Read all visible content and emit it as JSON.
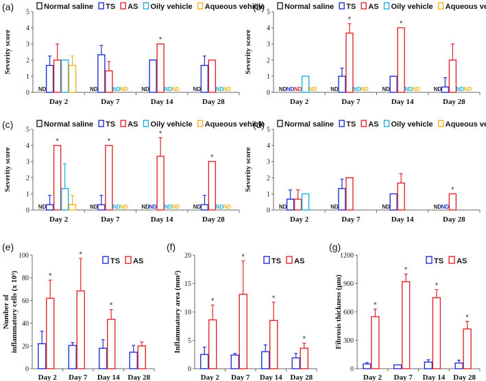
{
  "colors": {
    "normal_saline": "#222222",
    "ts": "#1f2fd0",
    "as": "#e0252a",
    "oily": "#1ab0d8",
    "aqueous": "#f2b21b"
  },
  "nd_label": "ND",
  "significance_marker": "*",
  "chart_data": [
    {
      "id": "a",
      "panel_label": "(a)",
      "type": "bar",
      "ylabel": "Severity score",
      "ylim": [
        0,
        5
      ],
      "yticks": [
        "0",
        "1",
        "2",
        "3",
        "4",
        "5"
      ],
      "categories": [
        "Day 2",
        "Day 7",
        "Day 14",
        "Day 28"
      ],
      "legend": [
        "Normal saline",
        "TS",
        "AS",
        "Oily vehicle",
        "Aqueous vehicle"
      ],
      "series": [
        {
          "name": "Normal saline",
          "color_key": "normal_saline",
          "values": [
            null,
            null,
            null,
            null
          ],
          "errors": [
            0,
            0,
            0,
            0
          ],
          "nd": [
            true,
            true,
            true,
            true
          ],
          "sig": [
            false,
            false,
            false,
            false
          ]
        },
        {
          "name": "TS",
          "color_key": "ts",
          "values": [
            1.67,
            2.33,
            2.0,
            1.67
          ],
          "errors": [
            0.58,
            0.58,
            0,
            0.58
          ],
          "nd": [
            false,
            false,
            false,
            false
          ],
          "sig": [
            false,
            false,
            false,
            false
          ]
        },
        {
          "name": "AS",
          "color_key": "as",
          "values": [
            2.0,
            1.33,
            3.0,
            2.0
          ],
          "errors": [
            1.0,
            0.58,
            0,
            0
          ],
          "nd": [
            false,
            false,
            false,
            false
          ],
          "sig": [
            false,
            false,
            true,
            false
          ]
        },
        {
          "name": "Oily vehicle",
          "color_key": "oily",
          "values": [
            2.0,
            null,
            null,
            null
          ],
          "errors": [
            0,
            0,
            0,
            0
          ],
          "nd": [
            false,
            true,
            true,
            true
          ],
          "sig": [
            false,
            false,
            false,
            false
          ]
        },
        {
          "name": "Aqueous vehicle",
          "color_key": "aqueous",
          "values": [
            1.67,
            null,
            null,
            null
          ],
          "errors": [
            0.58,
            0,
            0,
            0
          ],
          "nd": [
            false,
            true,
            true,
            true
          ],
          "sig": [
            false,
            false,
            false,
            false
          ]
        }
      ]
    },
    {
      "id": "b",
      "panel_label": "(b)",
      "type": "bar",
      "ylabel": "Severity score",
      "ylim": [
        0,
        5
      ],
      "yticks": [
        "0",
        "1",
        "2",
        "3",
        "4",
        "5"
      ],
      "categories": [
        "Day 2",
        "Day 7",
        "Day 14",
        "Day 28"
      ],
      "legend": [
        "Normal saline",
        "TS",
        "AS",
        "Oily vehicle",
        "Aqueous vehicle"
      ],
      "series": [
        {
          "name": "Normal saline",
          "color_key": "normal_saline",
          "values": [
            null,
            null,
            null,
            null
          ],
          "errors": [
            0,
            0,
            0,
            0
          ],
          "nd": [
            true,
            true,
            true,
            true
          ],
          "sig": [
            false,
            false,
            false,
            false
          ]
        },
        {
          "name": "TS",
          "color_key": "ts",
          "values": [
            null,
            1.0,
            1.0,
            0.33
          ],
          "errors": [
            0,
            0.5,
            0,
            0.58
          ],
          "nd": [
            true,
            false,
            false,
            false
          ],
          "sig": [
            false,
            false,
            false,
            false
          ]
        },
        {
          "name": "AS",
          "color_key": "as",
          "values": [
            null,
            3.67,
            4.0,
            2.0
          ],
          "errors": [
            0,
            0.58,
            0,
            1.0
          ],
          "nd": [
            true,
            false,
            false,
            false
          ],
          "sig": [
            false,
            true,
            true,
            false
          ]
        },
        {
          "name": "Oily vehicle",
          "color_key": "oily",
          "values": [
            1.0,
            null,
            null,
            null
          ],
          "errors": [
            0,
            0,
            0,
            0
          ],
          "nd": [
            false,
            true,
            true,
            true
          ],
          "sig": [
            false,
            false,
            false,
            false
          ]
        },
        {
          "name": "Aqueous vehicle",
          "color_key": "aqueous",
          "values": [
            null,
            null,
            null,
            null
          ],
          "errors": [
            0,
            0,
            0,
            0
          ],
          "nd": [
            true,
            true,
            true,
            true
          ],
          "sig": [
            false,
            false,
            false,
            false
          ]
        }
      ]
    },
    {
      "id": "c",
      "panel_label": "(c)",
      "type": "bar",
      "ylabel": "Severity score",
      "ylim": [
        0,
        5
      ],
      "yticks": [
        "0",
        "1",
        "2",
        "3",
        "4",
        "5"
      ],
      "categories": [
        "Day 2",
        "Day 7",
        "Day 14",
        "Day 28"
      ],
      "legend": [
        "Normal saline",
        "TS",
        "AS",
        "Oily vehicle",
        "Aqueous vehicle"
      ],
      "series": [
        {
          "name": "Normal saline",
          "color_key": "normal_saline",
          "values": [
            null,
            null,
            null,
            null
          ],
          "errors": [
            0,
            0,
            0,
            0
          ],
          "nd": [
            true,
            true,
            true,
            true
          ],
          "sig": [
            false,
            false,
            false,
            false
          ]
        },
        {
          "name": "TS",
          "color_key": "ts",
          "values": [
            0.33,
            0.33,
            null,
            0.33
          ],
          "errors": [
            0.58,
            0.58,
            0,
            0.58
          ],
          "nd": [
            false,
            false,
            true,
            false
          ],
          "sig": [
            false,
            false,
            false,
            false
          ]
        },
        {
          "name": "AS",
          "color_key": "as",
          "values": [
            4.0,
            4.0,
            3.33,
            3.0
          ],
          "errors": [
            0,
            0,
            1.15,
            0
          ],
          "nd": [
            false,
            false,
            false,
            false
          ],
          "sig": [
            true,
            true,
            true,
            true
          ]
        },
        {
          "name": "Oily vehicle",
          "color_key": "oily",
          "values": [
            1.33,
            null,
            null,
            null
          ],
          "errors": [
            1.53,
            0,
            0,
            0
          ],
          "nd": [
            false,
            true,
            true,
            true
          ],
          "sig": [
            false,
            false,
            false,
            false
          ]
        },
        {
          "name": "Aqueous vehicle",
          "color_key": "aqueous",
          "values": [
            0.33,
            null,
            null,
            null
          ],
          "errors": [
            0.58,
            0,
            0,
            0
          ],
          "nd": [
            false,
            true,
            true,
            true
          ],
          "sig": [
            false,
            false,
            false,
            false
          ]
        }
      ]
    },
    {
      "id": "d",
      "panel_label": "(d)",
      "type": "bar",
      "ylabel": "Severity score",
      "ylim": [
        0,
        5
      ],
      "yticks": [
        "0",
        "1",
        "2",
        "3",
        "4",
        "5"
      ],
      "categories": [
        "Day 2",
        "Day 7",
        "Day 14",
        "Day 28"
      ],
      "legend": [
        "Normal saline",
        "TS",
        "AS",
        "Oily vehicle",
        "Aqueous vehicle"
      ],
      "series": [
        {
          "name": "Normal saline",
          "color_key": "normal_saline",
          "values": [
            null,
            null,
            null,
            null
          ],
          "errors": [
            0,
            0,
            0,
            0
          ],
          "nd": [
            true,
            true,
            true,
            true
          ],
          "sig": [
            false,
            false,
            false,
            false
          ]
        },
        {
          "name": "TS",
          "color_key": "ts",
          "values": [
            0.67,
            1.33,
            1.0,
            null
          ],
          "errors": [
            0.58,
            0.58,
            0,
            0
          ],
          "nd": [
            false,
            false,
            false,
            true
          ],
          "sig": [
            false,
            false,
            false,
            false
          ]
        },
        {
          "name": "AS",
          "color_key": "as",
          "values": [
            0.67,
            2.0,
            1.67,
            1.0
          ],
          "errors": [
            0.58,
            0,
            0.58,
            0
          ],
          "nd": [
            false,
            false,
            false,
            false
          ],
          "sig": [
            false,
            false,
            false,
            true
          ]
        },
        {
          "name": "Oily vehicle",
          "color_key": "oily",
          "values": [
            1.0,
            null,
            null,
            null
          ],
          "errors": [
            0,
            0,
            0,
            0
          ],
          "nd": [
            false,
            false,
            false,
            false
          ],
          "sig": [
            false,
            false,
            false,
            false
          ]
        },
        {
          "name": "Aqueous vehicle",
          "color_key": "aqueous",
          "values": [
            null,
            null,
            null,
            null
          ],
          "errors": [
            0,
            0,
            0,
            0
          ],
          "nd": [
            false,
            false,
            false,
            false
          ],
          "sig": [
            false,
            false,
            false,
            false
          ]
        }
      ]
    },
    {
      "id": "e",
      "panel_label": "(e)",
      "type": "bar",
      "ylabel": "Number of inflammatory cells (x 10³)",
      "ylim": [
        0,
        100
      ],
      "yticks": [
        "0",
        "20",
        "40",
        "60",
        "80",
        "100"
      ],
      "categories": [
        "Day 2",
        "Day 7",
        "Day 14",
        "Day 28"
      ],
      "legend": [
        "TS",
        "AS"
      ],
      "series": [
        {
          "name": "TS",
          "color_key": "ts",
          "values": [
            22,
            20.5,
            18,
            14.5
          ],
          "errors": [
            11,
            2.5,
            7.5,
            6
          ],
          "nd": [
            false,
            false,
            false,
            false
          ],
          "sig": [
            false,
            false,
            false,
            false
          ]
        },
        {
          "name": "AS",
          "color_key": "as",
          "values": [
            62,
            68.5,
            43.5,
            20
          ],
          "errors": [
            16,
            28.5,
            8.5,
            3.5
          ],
          "nd": [
            false,
            false,
            false,
            false
          ],
          "sig": [
            true,
            true,
            true,
            false
          ]
        }
      ]
    },
    {
      "id": "f",
      "panel_label": "(f)",
      "type": "bar",
      "ylabel": "Inflammatory area (mm²)",
      "ylim": [
        0,
        20
      ],
      "yticks": [
        "0",
        "5",
        "10",
        "15",
        "20"
      ],
      "categories": [
        "Day 2",
        "Day 7",
        "Day 14",
        "Day 28"
      ],
      "legend": [
        "TS",
        "AS"
      ],
      "series": [
        {
          "name": "TS",
          "color_key": "ts",
          "values": [
            2.5,
            2.4,
            3.0,
            1.9
          ],
          "errors": [
            1.3,
            0.3,
            1.2,
            0.8
          ],
          "nd": [
            false,
            false,
            false,
            false
          ],
          "sig": [
            false,
            false,
            false,
            false
          ]
        },
        {
          "name": "AS",
          "color_key": "as",
          "values": [
            8.6,
            13.1,
            8.5,
            3.6
          ],
          "errors": [
            2.6,
            5.9,
            3.2,
            0.9
          ],
          "nd": [
            false,
            false,
            false,
            false
          ],
          "sig": [
            true,
            true,
            true,
            true
          ]
        }
      ]
    },
    {
      "id": "g",
      "panel_label": "(g)",
      "type": "bar",
      "ylabel": "Fibrosis thickness (μm)",
      "ylim": [
        0,
        1200
      ],
      "yticks": [
        "0",
        "300",
        "600",
        "900",
        "1200"
      ],
      "categories": [
        "Day 2",
        "Day 7",
        "Day 14",
        "Day 28"
      ],
      "legend": [
        "TS",
        "AS"
      ],
      "series": [
        {
          "name": "TS",
          "color_key": "ts",
          "values": [
            50,
            40,
            70,
            60
          ],
          "errors": [
            15,
            0,
            25,
            30
          ],
          "nd": [
            false,
            false,
            false,
            false
          ],
          "sig": [
            false,
            false,
            false,
            false
          ]
        },
        {
          "name": "AS",
          "color_key": "as",
          "values": [
            550,
            920,
            750,
            420
          ],
          "errors": [
            80,
            80,
            85,
            80
          ],
          "nd": [
            false,
            false,
            false,
            false
          ],
          "sig": [
            true,
            true,
            true,
            true
          ]
        }
      ]
    }
  ]
}
